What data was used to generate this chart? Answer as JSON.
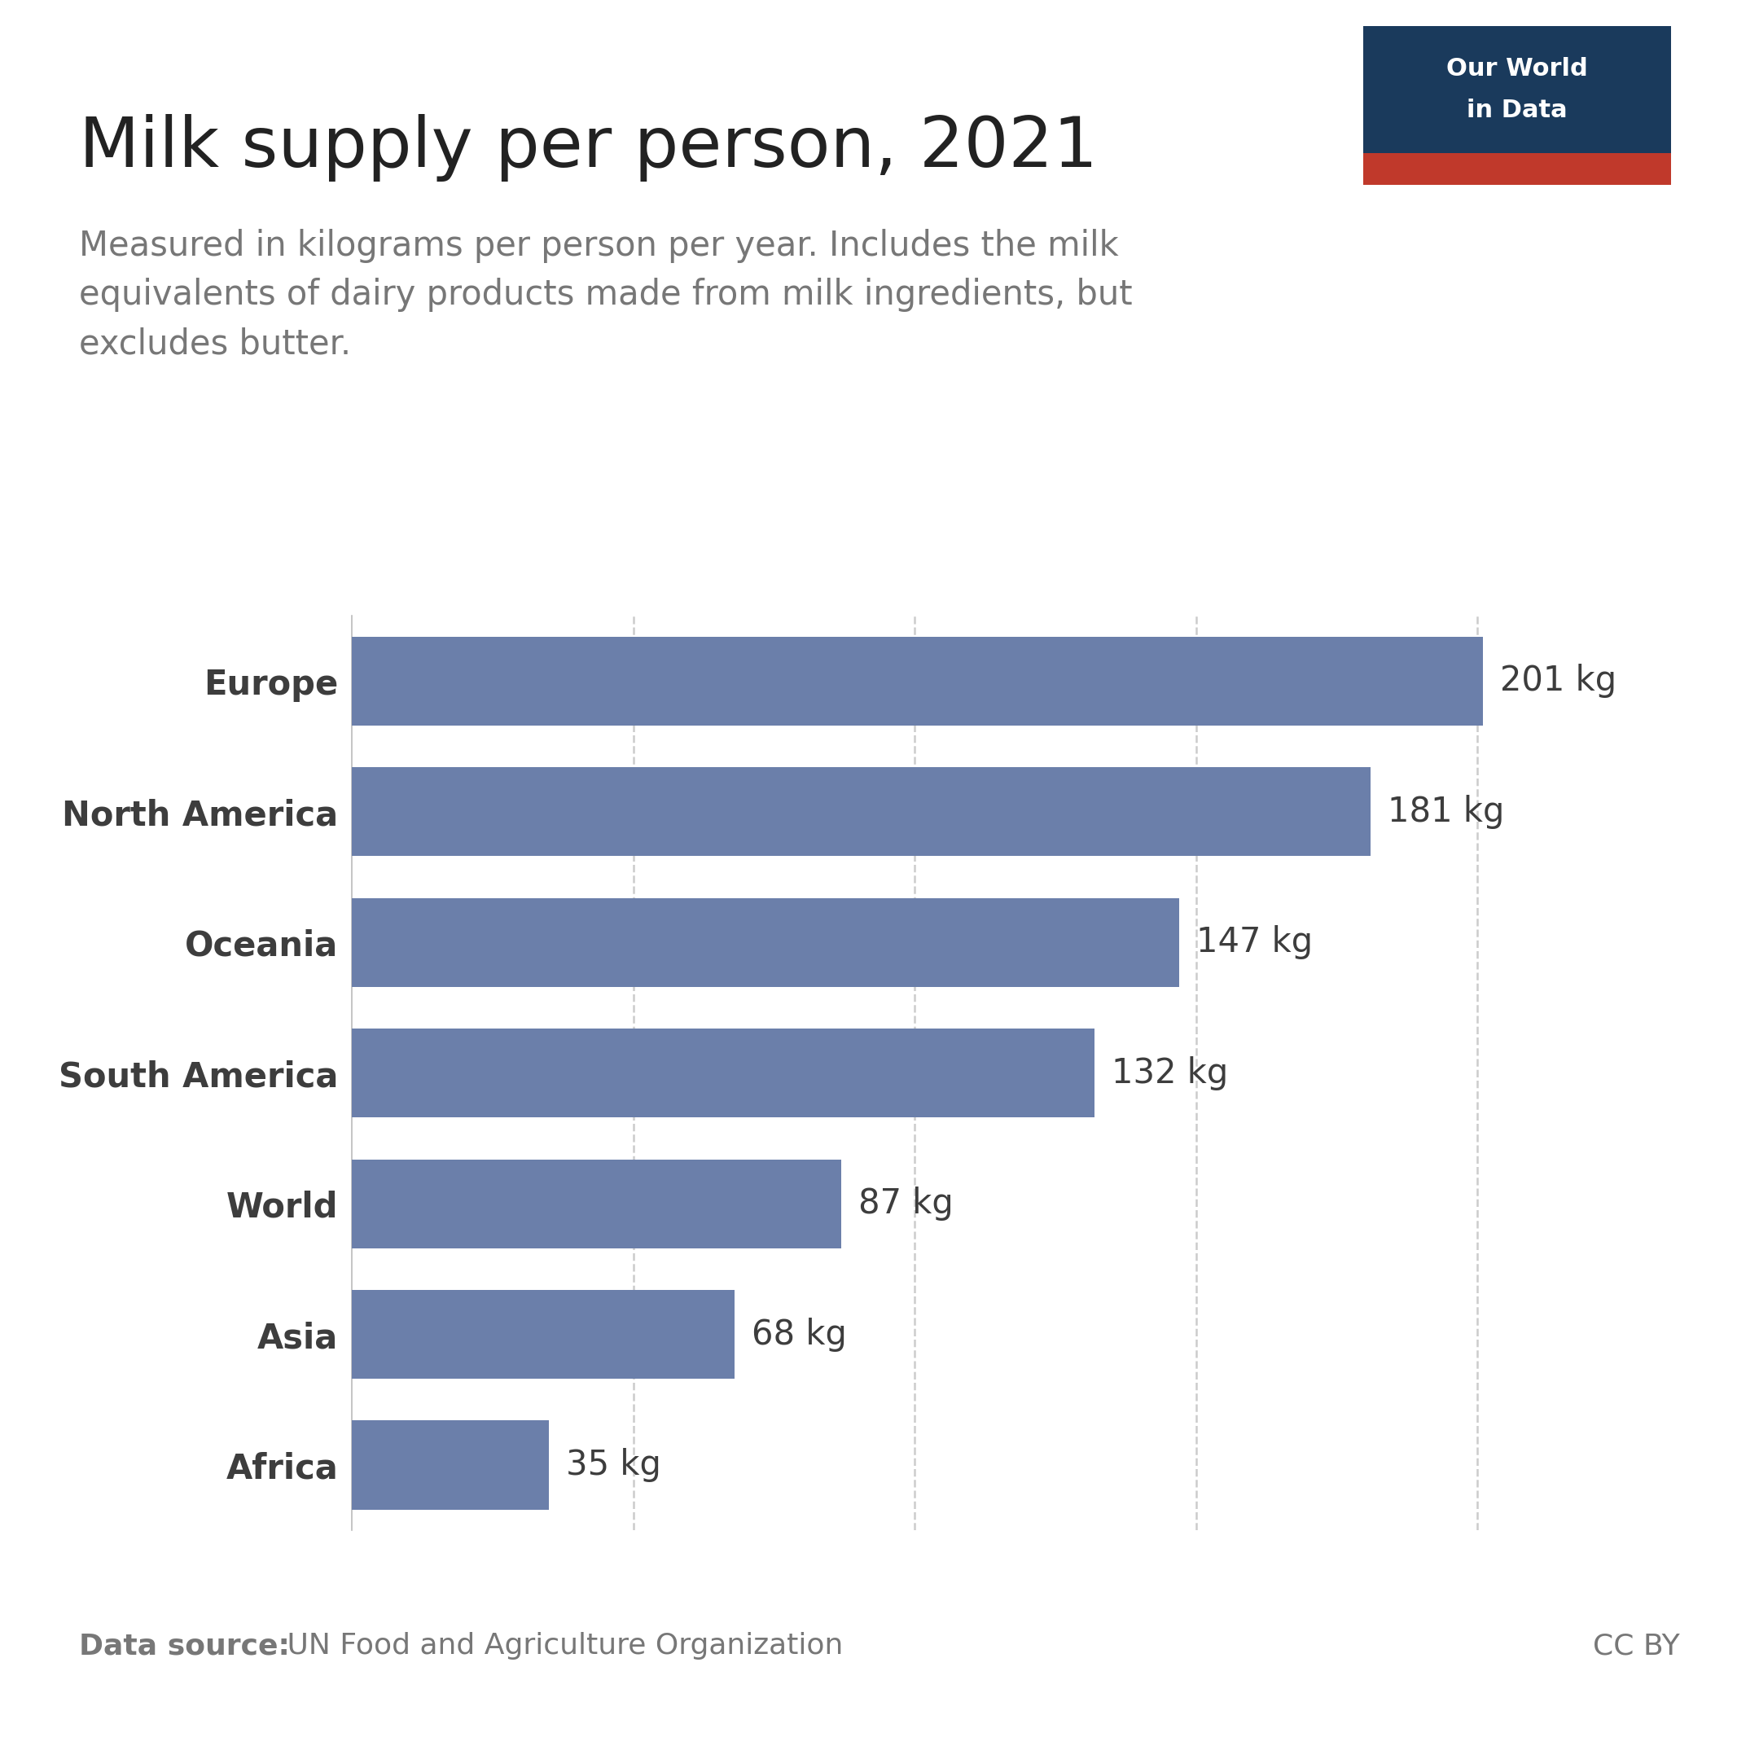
{
  "title": "Milk supply per person, 2021",
  "subtitle": "Measured in kilograms per person per year. Includes the milk\nequivalents of dairy products made from milk ingredients, but\nexcludes butter.",
  "categories": [
    "Europe",
    "North America",
    "Oceania",
    "South America",
    "World",
    "Asia",
    "Africa"
  ],
  "values": [
    201,
    181,
    147,
    132,
    87,
    68,
    35
  ],
  "labels": [
    "201 kg",
    "181 kg",
    "147 kg",
    "132 kg",
    "87 kg",
    "68 kg",
    "35 kg"
  ],
  "bar_color": "#6b7faa",
  "background_color": "#ffffff",
  "text_color": "#3d3d3d",
  "subtitle_color": "#777777",
  "data_source_bold": "Data source:",
  "data_source_text": " UN Food and Agriculture Organization",
  "cc_by": "CC BY",
  "owid_bg_color": "#1a3a5c",
  "owid_red_color": "#c0392b",
  "owid_text_line1": "Our World",
  "owid_text_line2": "in Data",
  "xlim": [
    0,
    225
  ],
  "grid_values": [
    50,
    100,
    150,
    200
  ],
  "title_fontsize": 62,
  "subtitle_fontsize": 30,
  "bar_label_fontsize": 30,
  "category_fontsize": 30,
  "footer_fontsize": 26
}
